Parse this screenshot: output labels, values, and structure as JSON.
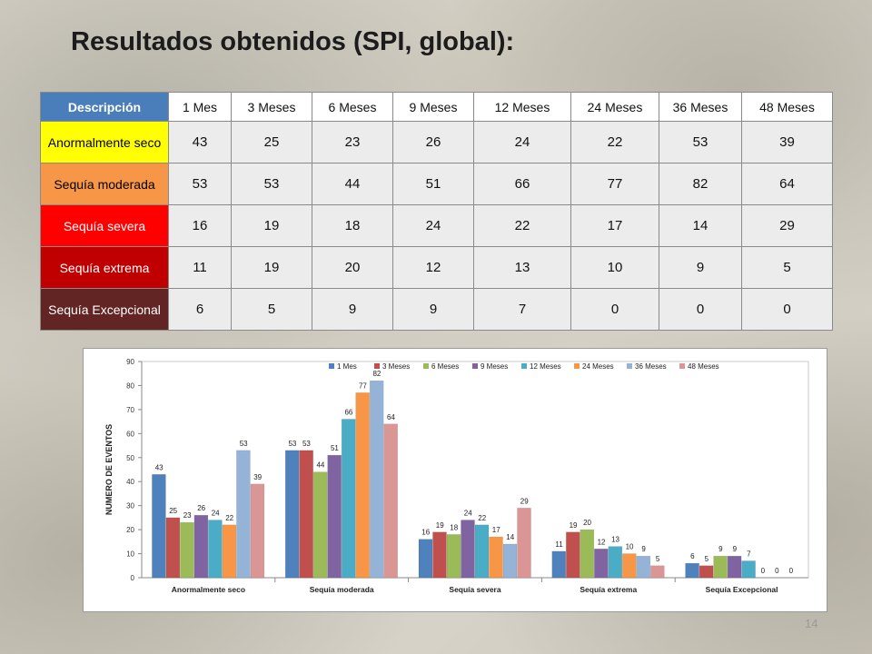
{
  "slide": {
    "title": "Resultados obtenidos (SPI, global):",
    "page_number": "14"
  },
  "table": {
    "headers": [
      "Descripción",
      "1 Mes",
      "3 Meses",
      "6 Meses",
      "9 Meses",
      "12 Meses",
      "24 Meses",
      "36 Meses",
      "48 Meses"
    ],
    "rows": [
      {
        "label": "Anormalmente seco",
        "color": "#ffff00",
        "text_color": "#000000",
        "values": [
          "43",
          "25",
          "23",
          "26",
          "24",
          "22",
          "53",
          "39"
        ]
      },
      {
        "label": "Sequía moderada",
        "color": "#f79646",
        "text_color": "#000000",
        "values": [
          "53",
          "53",
          "44",
          "51",
          "66",
          "77",
          "82",
          "64"
        ]
      },
      {
        "label": "Sequía severa",
        "color": "#ff0000",
        "text_color": "#ffffff",
        "values": [
          "16",
          "19",
          "18",
          "24",
          "22",
          "17",
          "14",
          "29"
        ]
      },
      {
        "label": "Sequía extrema",
        "color": "#c00000",
        "text_color": "#ffffff",
        "values": [
          "11",
          "19",
          "20",
          "12",
          "13",
          "10",
          "9",
          "5"
        ]
      },
      {
        "label": "Sequía Excepcional",
        "color": "#632523",
        "text_color": "#ffffff",
        "values": [
          "6",
          "5",
          "9",
          "9",
          "7",
          "0",
          "0",
          "0"
        ]
      }
    ]
  },
  "chart_data": {
    "type": "bar",
    "categories": [
      "Anormalmente seco",
      "Sequía moderada",
      "Sequía severa",
      "Sequía extrema",
      "Sequía Excepcional"
    ],
    "series": [
      {
        "name": "1 Mes",
        "color": "#4f81bd",
        "values": [
          43,
          53,
          16,
          11,
          6
        ]
      },
      {
        "name": "3 Meses",
        "color": "#c0504d",
        "values": [
          25,
          53,
          19,
          19,
          5
        ]
      },
      {
        "name": "6 Meses",
        "color": "#9bbb59",
        "values": [
          23,
          44,
          18,
          20,
          9
        ]
      },
      {
        "name": "9 Meses",
        "color": "#8064a2",
        "values": [
          26,
          51,
          24,
          12,
          9
        ]
      },
      {
        "name": "12 Meses",
        "color": "#4bacc6",
        "values": [
          24,
          66,
          22,
          13,
          7
        ]
      },
      {
        "name": "24 Meses",
        "color": "#f79646",
        "values": [
          22,
          77,
          17,
          10,
          0
        ]
      },
      {
        "name": "36 Meses",
        "color": "#95b3d7",
        "values": [
          53,
          82,
          14,
          9,
          0
        ]
      },
      {
        "name": "48 Meses",
        "color": "#da9694",
        "values": [
          39,
          64,
          29,
          5,
          0
        ]
      }
    ],
    "title": "",
    "xlabel": "",
    "ylabel": "NUMERO DE EVENTOS",
    "ylim": [
      0,
      90
    ],
    "yticks": [
      0,
      10,
      20,
      30,
      40,
      50,
      60,
      70,
      80,
      90
    ],
    "data_labels": true,
    "grid": false,
    "legend_position": "top-right"
  }
}
